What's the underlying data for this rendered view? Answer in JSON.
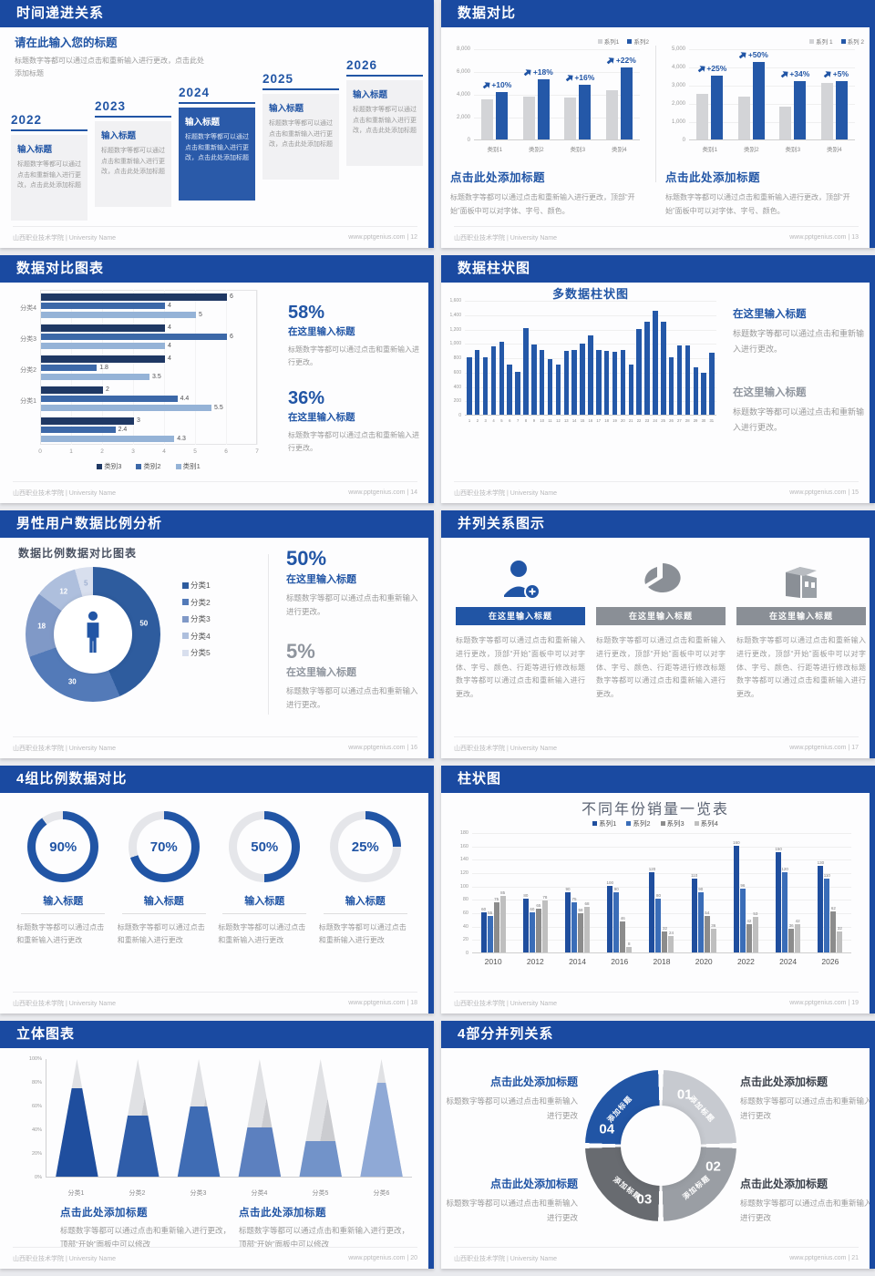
{
  "colors": {
    "header_bar": "#1a4aa1",
    "accent": "#2155a5",
    "bar_gray": "#d3d4d7",
    "bar_blue": "#2458a8",
    "navy": "#1f3864",
    "mid_blue": "#3c68a8",
    "light_blue": "#95b3d7",
    "muted_heading": "#8f959e",
    "series_colors": [
      "#1f4e9e",
      "#3a6db8",
      "#8c8c8c",
      "#bfbfbf"
    ]
  },
  "footer": {
    "left": "山西职业技术学院 | University Name"
  },
  "slides": {
    "timeline": {
      "title": "时间递进关系",
      "footer_right": "www.pptgenius.com | 12",
      "intro_title": "请在此输入您的标题",
      "intro_body": "标题数字等都可以通过点击和重新输入进行更改，点击此处添加标题",
      "items": [
        {
          "year": "2022",
          "label": "输入标题",
          "body": "标题数字等都可以通过点击和重新输入进行更改，点击此处添加标题",
          "highlight": false
        },
        {
          "year": "2023",
          "label": "输入标题",
          "body": "标题数字等都可以通过点击和重新输入进行更改，点击此处添加标题",
          "highlight": false
        },
        {
          "year": "2024",
          "label": "输入标题",
          "body": "标题数字等都可以通过点击和重新输入进行更改，点击此处添加标题",
          "highlight": true
        },
        {
          "year": "2025",
          "label": "输入标题",
          "body": "标题数字等都可以通过点击和重新输入进行更改，点击此处添加标题",
          "highlight": false
        },
        {
          "year": "2026",
          "label": "输入标题",
          "body": "标题数字等都可以通过点击和重新输入进行更改，点击此处添加标题",
          "highlight": false
        }
      ]
    },
    "compare": {
      "title": "数据对比",
      "footer_right": "www.pptgenius.com | 13",
      "charts": [
        {
          "type": "bar",
          "legend": [
            "系列1",
            "系列2"
          ],
          "ymax": 8000,
          "yticks": [
            "8,000",
            "6,000",
            "4,000",
            "2,000",
            "0"
          ],
          "categories": [
            "类别1",
            "类别2",
            "类别3",
            "类别4"
          ],
          "series1": [
            3500,
            3800,
            3650,
            4300
          ],
          "series2": [
            4200,
            5300,
            4800,
            6300
          ],
          "growth": [
            "+10%",
            "+18%",
            "+16%",
            "+22%"
          ],
          "heading": "点击此处添加标题",
          "body": "标题数字等都可以通过点击和重新输入进行更改，顶部“开始”面板中可以对字体、字号、颜色。"
        },
        {
          "type": "bar",
          "legend": [
            "系列 1",
            "系列 2"
          ],
          "ymax": 5000,
          "yticks": [
            "5,000",
            "4,000",
            "3,000",
            "2,000",
            "1,000",
            "0"
          ],
          "categories": [
            "类别1",
            "类别2",
            "类别3",
            "类别4"
          ],
          "series1": [
            2500,
            2350,
            1800,
            3100
          ],
          "series2": [
            3500,
            4250,
            3200,
            3200
          ],
          "growth": [
            "+25%",
            "+50%",
            "+34%",
            "+5%"
          ],
          "heading": "点击此处添加标题",
          "body": "标题数字等都可以通过点击和重新输入进行更改，顶部“开始”面板中可以对字体、字号、颜色。"
        }
      ]
    },
    "hbar": {
      "title": "数据对比图表",
      "footer_right": "www.pptgenius.com | 14",
      "type": "bar-horizontal",
      "xmax": 7,
      "xticks": [
        "0",
        "1",
        "2",
        "3",
        "4",
        "5",
        "6",
        "7"
      ],
      "legend": [
        "类别3",
        "类别2",
        "类别1"
      ],
      "groups": [
        {
          "label": "分类4",
          "values": [
            6,
            4,
            5
          ]
        },
        {
          "label": "分类3",
          "values": [
            4,
            6,
            4
          ]
        },
        {
          "label": "分类2",
          "values": [
            4,
            1.8,
            3.5
          ]
        },
        {
          "label": "分类1",
          "values": [
            2,
            4.4,
            5.5
          ]
        },
        {
          "label": "",
          "values": [
            3,
            2.4,
            4.3
          ]
        }
      ],
      "stats": [
        {
          "pct": "58%",
          "head": "在这里输入标题",
          "body": "标题数字等都可以通过点击和重新输入进行更改。",
          "muted": false
        },
        {
          "pct": "36%",
          "head": "在这里输入标题",
          "body": "标题数字等都可以通过点击和重新输入进行更改。",
          "muted": false
        }
      ]
    },
    "multibar": {
      "title": "数据柱状图",
      "footer_right": "www.pptgenius.com | 15",
      "chart_title": "多数据柱状图",
      "type": "bar",
      "ymax": 1600,
      "yticks": [
        "1,600",
        "1,400",
        "1,200",
        "1,000",
        "800",
        "600",
        "400",
        "200",
        "0"
      ],
      "x_labels": [
        "1",
        "2",
        "3",
        "4",
        "5",
        "6",
        "7",
        "8",
        "9",
        "10",
        "11",
        "12",
        "13",
        "14",
        "15",
        "16",
        "17",
        "18",
        "19",
        "20",
        "21",
        "22",
        "23",
        "24",
        "25",
        "26",
        "27",
        "28",
        "29",
        "30",
        "31"
      ],
      "values": [
        800,
        900,
        800,
        950,
        1020,
        700,
        600,
        1210,
        980,
        900,
        780,
        700,
        890,
        900,
        990,
        1100,
        900,
        890,
        880,
        900,
        700,
        1200,
        1300,
        1450,
        1300,
        800,
        960,
        960,
        660,
        590,
        860
      ],
      "blocks": [
        {
          "head": "在这里输入标题",
          "body": "标题数字等都可以通过点击和重新输入进行更改。",
          "muted": false
        },
        {
          "head": "在这里输入标题",
          "body": "标题数字等都可以通过点击和重新输入进行更改。",
          "muted": true
        }
      ]
    },
    "donut": {
      "title": "男性用户数据比例分析",
      "footer_right": "www.pptgenius.com | 16",
      "chart_title": "数据比例数据对比图表",
      "type": "pie",
      "segments": [
        {
          "label": "分类1",
          "value": 50,
          "color": "#2e5c9e",
          "label_color": "#ffffff"
        },
        {
          "label": "分类2",
          "value": 30,
          "color": "#537ab8",
          "label_color": "#ffffff"
        },
        {
          "label": "分类3",
          "value": 18,
          "color": "#8099c7",
          "label_color": "#ffffff"
        },
        {
          "label": "分类4",
          "value": 12,
          "color": "#aebfdd",
          "label_color": "#ffffff"
        },
        {
          "label": "分类5",
          "value": 5,
          "color": "#d8dfee",
          "label_color": "#9fb0d0"
        }
      ],
      "stats": [
        {
          "pct": "50%",
          "head": "在这里输入标题",
          "body": "标题数字等都可以通过点击和重新输入进行更改。",
          "muted": false
        },
        {
          "pct": "5%",
          "head": "在这里输入标题",
          "body": "标题数字等都可以通过点击和重新输入进行更改。",
          "muted": true
        }
      ]
    },
    "parallel": {
      "title": "并列关系图示",
      "footer_right": "www.pptgenius.com | 17",
      "columns": [
        {
          "icon": "person-plus-icon",
          "header": "在这里输入标题",
          "accent": true,
          "body": "标题数字等都可以通过点击和重新输入进行更改，顶部“开始”面板中可以对字体、字号、颜色、行距等进行修改标题数字等都可以通过点击和重新输入进行更改。"
        },
        {
          "icon": "pie-chart-icon",
          "header": "在这里输入标题",
          "accent": false,
          "body": "标题数字等都可以通过点击和重新输入进行更改，顶部“开始”面板中可以对字体、字号、颜色、行距等进行修改标题数字等都可以通过点击和重新输入进行更改。"
        },
        {
          "icon": "building-icon",
          "header": "在这里输入标题",
          "accent": false,
          "body": "标题数字等都可以通过点击和重新输入进行更改，顶部“开始”面板中可以对字体、字号、颜色、行距等进行修改标题数字等都可以通过点击和重新输入进行更改。"
        }
      ]
    },
    "rings": {
      "title": "4组比例数据对比",
      "footer_right": "www.pptgenius.com | 18",
      "items": [
        {
          "value": 90,
          "pct": "90%",
          "label": "输入标题",
          "body": "标题数字等都可以通过点击和重新输入进行更改"
        },
        {
          "value": 70,
          "pct": "70%",
          "label": "输入标题",
          "body": "标题数字等都可以通过点击和重新输入进行更改"
        },
        {
          "value": 50,
          "pct": "50%",
          "label": "输入标题",
          "body": "标题数字等都可以通过点击和重新输入进行更改"
        },
        {
          "value": 25,
          "pct": "25%",
          "label": "输入标题",
          "body": "标题数字等都可以通过点击和重新输入进行更改"
        }
      ]
    },
    "grouped": {
      "title": "柱状图",
      "footer_right": "www.pptgenius.com | 19",
      "chart_title": "不同年份销量一览表",
      "type": "bar",
      "legend": [
        "系列1",
        "系列2",
        "系列3",
        "系列4"
      ],
      "ymax": 180,
      "yticks": [
        "180",
        "160",
        "140",
        "120",
        "100",
        "80",
        "60",
        "40",
        "20",
        "0"
      ],
      "categories": [
        "2010",
        "2012",
        "2014",
        "2016",
        "2018",
        "2020",
        "2022",
        "2024",
        "2026"
      ],
      "series": [
        {
          "name": "系列1",
          "values": [
            60,
            80,
            90,
            100,
            120,
            110,
            160,
            150,
            130
          ]
        },
        {
          "name": "系列2",
          "values": [
            55,
            60,
            75,
            90,
            80,
            90,
            96,
            120,
            110
          ]
        },
        {
          "name": "系列3",
          "values": [
            75,
            65,
            58,
            46,
            32,
            54,
            42,
            36,
            62
          ]
        },
        {
          "name": "系列4",
          "values": [
            85,
            78,
            68,
            8,
            24,
            36,
            53,
            42,
            32
          ]
        }
      ]
    },
    "cones": {
      "title": "立体图表",
      "footer_right": "www.pptgenius.com | 20",
      "type": "cone",
      "yticks": [
        "100%",
        "80%",
        "60%",
        "40%",
        "20%",
        "0%"
      ],
      "categories": [
        "分类1",
        "分类2",
        "分类3",
        "分类4",
        "分类5",
        "分类6"
      ],
      "fills": [
        75,
        52,
        60,
        42,
        30,
        80
      ],
      "cone_colors": [
        "#1f4e9e",
        "#2f5da9",
        "#3f6cb4",
        "#5c80bf",
        "#7293c9",
        "#8fa9d6"
      ],
      "blocks": [
        {
          "head": "点击此处添加标题",
          "body": "标题数字等都可以通过点击和重新输入进行更改，顶部“开始”面板中可以修改"
        },
        {
          "head": "点击此处添加标题",
          "body": "标题数字等都可以通过点击和重新输入进行更改，顶部“开始”面板中可以修改"
        }
      ]
    },
    "quad": {
      "title": "4部分并列关系",
      "footer_right": "www.pptgenius.com | 21",
      "wedges": [
        {
          "num": "01",
          "label": "添加标题",
          "color": "#c7cad0"
        },
        {
          "num": "02",
          "label": "添加标题",
          "color": "#9a9ea4"
        },
        {
          "num": "03",
          "label": "添加标题",
          "color": "#686b70"
        },
        {
          "num": "04",
          "label": "添加标题",
          "color": "#2155a5"
        }
      ],
      "notes": [
        {
          "head": "点击此处添加标题",
          "body": "标题数字等都可以通过点击和重新输入进行更改",
          "accent": true
        },
        {
          "head": "点击此处添加标题",
          "body": "标题数字等都可以通过点击和重新输入进行更改",
          "accent": false
        },
        {
          "head": "点击此处添加标题",
          "body": "标题数字等都可以通过点击和重新输入进行更改",
          "accent": true
        },
        {
          "head": "点击此处添加标题",
          "body": "标题数字等都可以通过点击和重新输入进行更改",
          "accent": false
        }
      ]
    }
  }
}
